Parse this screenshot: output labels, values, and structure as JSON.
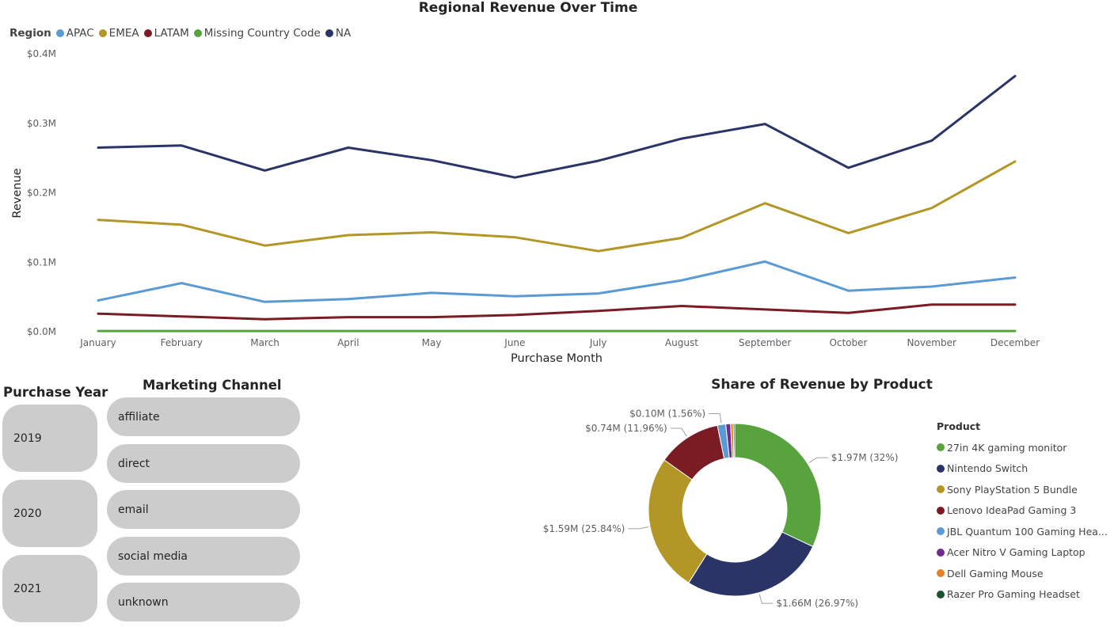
{
  "line_chart": {
    "title": "Regional Revenue Over Time",
    "legend_title": "Region",
    "chart_data": {
      "type": "line",
      "title": "Regional Revenue Over Time",
      "xlabel": "Purchase Month",
      "ylabel": "Revenue",
      "categories": [
        "January",
        "February",
        "March",
        "April",
        "May",
        "June",
        "July",
        "August",
        "September",
        "October",
        "November",
        "December"
      ],
      "ylim": [
        0,
        0.4
      ],
      "yticks": [
        0,
        0.1,
        0.2,
        0.3,
        0.4
      ],
      "ytick_labels": [
        "$0.0M",
        "$0.1M",
        "$0.2M",
        "$0.3M",
        "$0.4M"
      ],
      "grid": false,
      "legend_placement": "top-left",
      "series": [
        {
          "name": "APAC",
          "color": "#5b9bd5",
          "values": [
            0.045,
            0.07,
            0.043,
            0.047,
            0.056,
            0.051,
            0.055,
            0.074,
            0.101,
            0.059,
            0.065,
            0.078
          ]
        },
        {
          "name": "EMEA",
          "color": "#b39726",
          "values": [
            0.161,
            0.154,
            0.124,
            0.139,
            0.143,
            0.136,
            0.116,
            0.135,
            0.185,
            0.142,
            0.178,
            0.245
          ]
        },
        {
          "name": "LATAM",
          "color": "#7b1c25",
          "values": [
            0.026,
            0.022,
            0.018,
            0.021,
            0.021,
            0.024,
            0.03,
            0.037,
            0.032,
            0.027,
            0.039,
            0.039
          ]
        },
        {
          "name": "Missing Country Code",
          "color": "#58a33d",
          "values": [
            0.001,
            0.001,
            0.001,
            0.001,
            0.001,
            0.001,
            0.001,
            0.001,
            0.001,
            0.001,
            0.001,
            0.001
          ]
        },
        {
          "name": "NA",
          "color": "#2b3467",
          "values": [
            0.265,
            0.268,
            0.232,
            0.265,
            0.247,
            0.222,
            0.246,
            0.278,
            0.299,
            0.236,
            0.275,
            0.368
          ]
        }
      ]
    }
  },
  "purchase_year": {
    "title": "Purchase Year",
    "items": [
      "2019",
      "2020",
      "2021"
    ]
  },
  "marketing_channel": {
    "title": "Marketing Channel",
    "items": [
      "affiliate",
      "direct",
      "email",
      "social media",
      "unknown"
    ]
  },
  "pie_chart": {
    "title": "Share of Revenue by Product",
    "legend_title": "Product",
    "chart_data": {
      "type": "pie",
      "title": "Share of Revenue by Product",
      "legend_placement": "right",
      "slices": [
        {
          "name": "27in 4K gaming monitor",
          "value": 32.0,
          "color": "#58a33d",
          "label": "$1.97M (32%)"
        },
        {
          "name": "Nintendo Switch",
          "value": 26.97,
          "color": "#2b3467",
          "label": "$1.66M (26.97%)"
        },
        {
          "name": "Sony PlayStation 5 Bundle",
          "value": 25.84,
          "color": "#b39726",
          "label": "$1.59M (25.84%)"
        },
        {
          "name": "Lenovo IdeaPad Gaming 3",
          "value": 11.96,
          "color": "#7b1c25",
          "label": "$0.74M (11.96%)"
        },
        {
          "name": "JBL Quantum 100 Gaming Hea...",
          "value": 1.56,
          "color": "#5b9bd5",
          "label": "$0.10M (1.56%)"
        },
        {
          "name": "Acer Nitro V Gaming Laptop",
          "value": 0.9,
          "color": "#6f2b8e",
          "label": ""
        },
        {
          "name": "Dell Gaming Mouse",
          "value": 0.5,
          "color": "#e67e22",
          "label": ""
        },
        {
          "name": "Razer Pro Gaming Headset",
          "value": 0.27,
          "color": "#1f5130",
          "label": ""
        }
      ]
    }
  }
}
